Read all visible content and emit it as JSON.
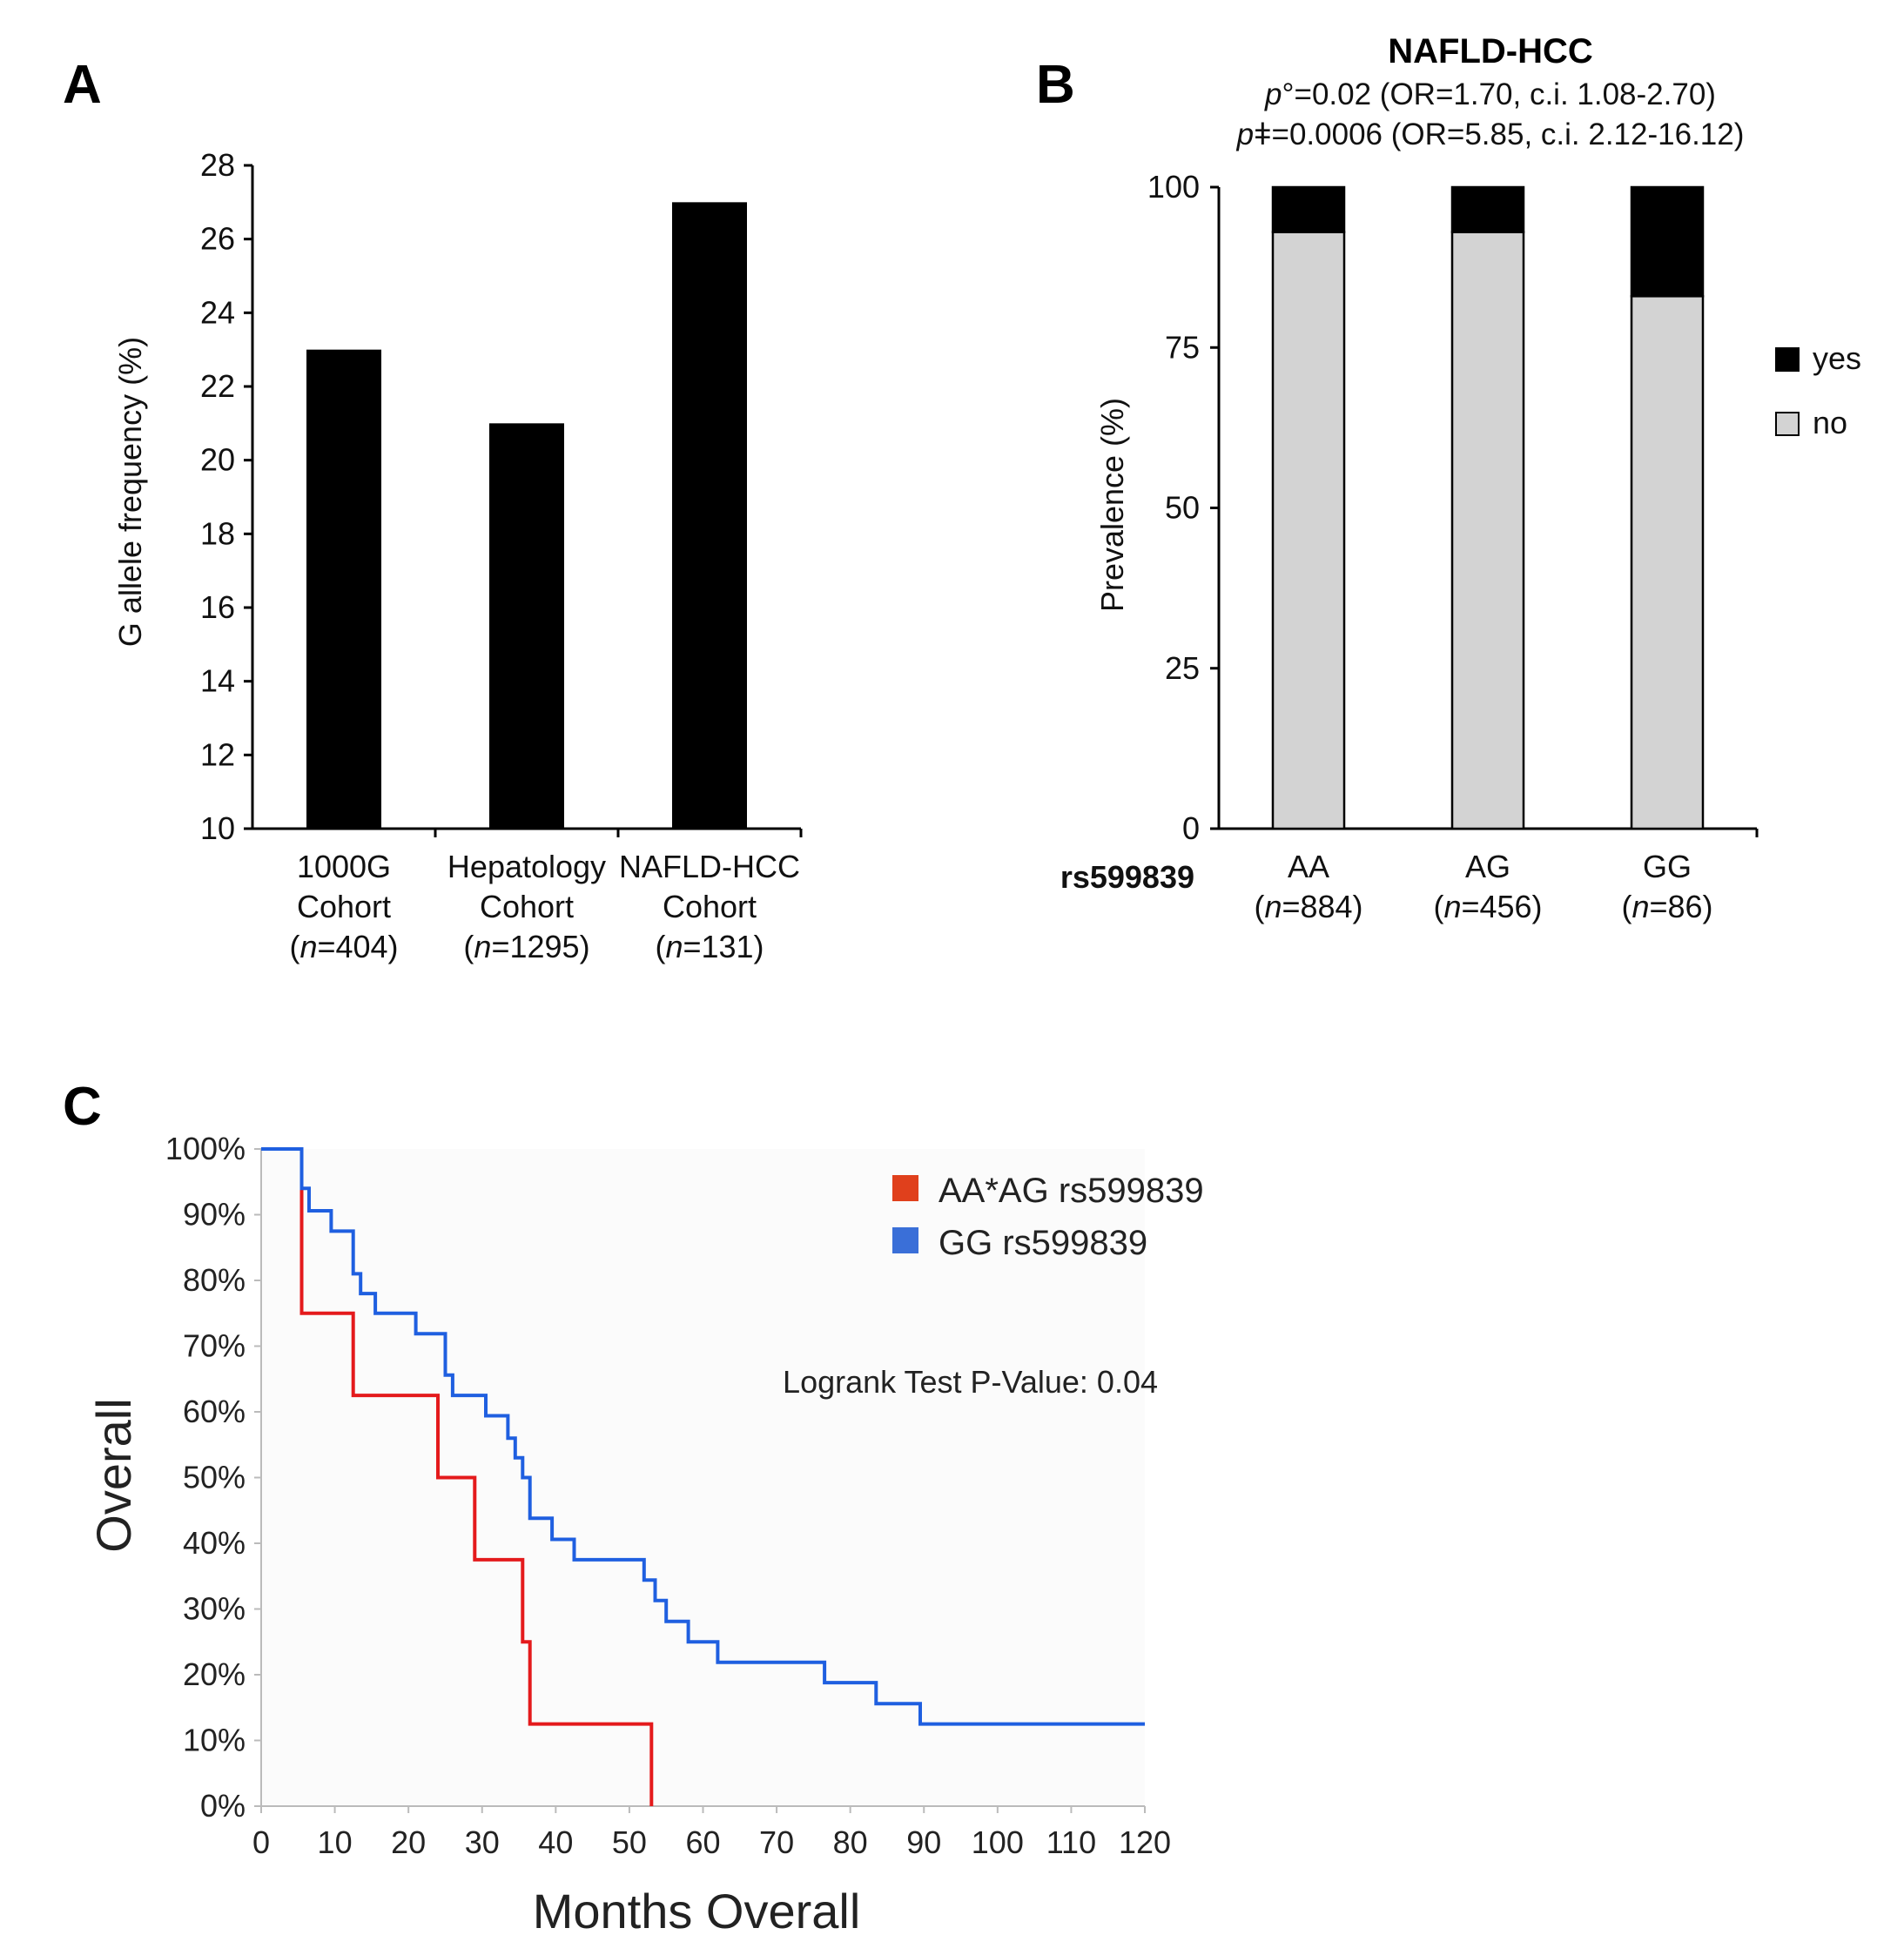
{
  "chart_data": [
    {
      "panel": "A",
      "type": "bar",
      "title": "",
      "ylabel": "G allele frequency (%)",
      "xlabel": "",
      "ylim": [
        10,
        28
      ],
      "yticks": [
        10,
        12,
        14,
        16,
        18,
        20,
        22,
        24,
        26,
        28
      ],
      "categories": [
        {
          "name": "1000G",
          "sub": "Cohort",
          "n": "404"
        },
        {
          "name": "Hepatology",
          "sub": "Cohort",
          "n": "1295"
        },
        {
          "name": "NAFLD-HCC",
          "sub": "Cohort",
          "n": "131"
        }
      ],
      "values": [
        23,
        21,
        27
      ],
      "bar_color": "#000000"
    },
    {
      "panel": "B",
      "type": "bar",
      "stacked": true,
      "title": "NAFLD-HCC",
      "stat_lines": [
        {
          "p_symbol": "p",
          "mark": "°",
          "text": "=0.02 (OR=1.70, c.i. 1.08-2.70)"
        },
        {
          "p_symbol": "p",
          "mark": "ǂ",
          "text": "=0.0006 (OR=5.85, c.i. 2.12-16.12)"
        }
      ],
      "ylabel": "Prevalence (%)",
      "x_group_label": "rs599839",
      "ylim": [
        0,
        100
      ],
      "yticks": [
        0,
        25,
        50,
        75,
        100
      ],
      "categories": [
        {
          "name": "AA",
          "n": "884"
        },
        {
          "name": "AG",
          "n": "456"
        },
        {
          "name": "GG",
          "n": "86"
        }
      ],
      "series": [
        {
          "name": "no",
          "values": [
            93,
            93,
            83
          ],
          "color": "#d3d3d3"
        },
        {
          "name": "yes",
          "values": [
            7,
            7,
            17
          ],
          "color": "#000000"
        }
      ],
      "legend": [
        "yes",
        "no"
      ],
      "legend_position": "right"
    },
    {
      "panel": "C",
      "type": "line",
      "step": true,
      "xlabel": "Months Overall",
      "ylabel": "Overall",
      "xlim": [
        0,
        120
      ],
      "ylim": [
        0,
        100
      ],
      "xticks": [
        0,
        10,
        20,
        30,
        40,
        50,
        60,
        70,
        80,
        90,
        100,
        110,
        120
      ],
      "yticks": [
        "0%",
        "10%",
        "20%",
        "30%",
        "40%",
        "50%",
        "60%",
        "70%",
        "80%",
        "90%",
        "100%"
      ],
      "annotation": "Logrank Test P-Value: 0.04",
      "legend_position": "top-right",
      "series": [
        {
          "name": "AA*AG rs599839",
          "color": "#e41a1c",
          "points": [
            [
              0,
              100
            ],
            [
              5.5,
              100
            ],
            [
              5.5,
              75
            ],
            [
              12.5,
              75
            ],
            [
              12.5,
              62.5
            ],
            [
              24,
              62.5
            ],
            [
              24,
              50
            ],
            [
              29,
              50
            ],
            [
              29,
              37.5
            ],
            [
              35.5,
              37.5
            ],
            [
              35.5,
              25
            ],
            [
              36.5,
              25
            ],
            [
              36.5,
              12.5
            ],
            [
              53,
              12.5
            ],
            [
              53,
              0
            ]
          ]
        },
        {
          "name": "GG rs599839",
          "color": "#1f5fe0",
          "points": [
            [
              0,
              100
            ],
            [
              5.5,
              100
            ],
            [
              5.5,
              94
            ],
            [
              6.5,
              94
            ],
            [
              6.5,
              90.6
            ],
            [
              9.5,
              90.6
            ],
            [
              9.5,
              87.5
            ],
            [
              12.5,
              87.5
            ],
            [
              12.5,
              81
            ],
            [
              13.5,
              81
            ],
            [
              13.5,
              78
            ],
            [
              15.5,
              78
            ],
            [
              15.5,
              75
            ],
            [
              21,
              75
            ],
            [
              21,
              71.9
            ],
            [
              25,
              71.9
            ],
            [
              25,
              65.6
            ],
            [
              26,
              65.6
            ],
            [
              26,
              62.5
            ],
            [
              30.5,
              62.5
            ],
            [
              30.5,
              59.4
            ],
            [
              33.5,
              59.4
            ],
            [
              33.5,
              56
            ],
            [
              34.5,
              56
            ],
            [
              34.5,
              53
            ],
            [
              35.5,
              53
            ],
            [
              35.5,
              50
            ],
            [
              36.5,
              50
            ],
            [
              36.5,
              43.8
            ],
            [
              39.5,
              43.8
            ],
            [
              39.5,
              40.6
            ],
            [
              42.5,
              40.6
            ],
            [
              42.5,
              37.5
            ],
            [
              52,
              37.5
            ],
            [
              52,
              34.4
            ],
            [
              53.5,
              34.4
            ],
            [
              53.5,
              31.3
            ],
            [
              55,
              31.3
            ],
            [
              55,
              28.1
            ],
            [
              58,
              28.1
            ],
            [
              58,
              25
            ],
            [
              62,
              25
            ],
            [
              62,
              21.9
            ],
            [
              76.5,
              21.9
            ],
            [
              76.5,
              18.8
            ],
            [
              83.5,
              18.8
            ],
            [
              83.5,
              15.6
            ],
            [
              89.5,
              15.6
            ],
            [
              89.5,
              12.5
            ],
            [
              120,
              12.5
            ]
          ]
        }
      ]
    }
  ],
  "panel_labels": {
    "a": "A",
    "b": "B",
    "c": "C"
  }
}
